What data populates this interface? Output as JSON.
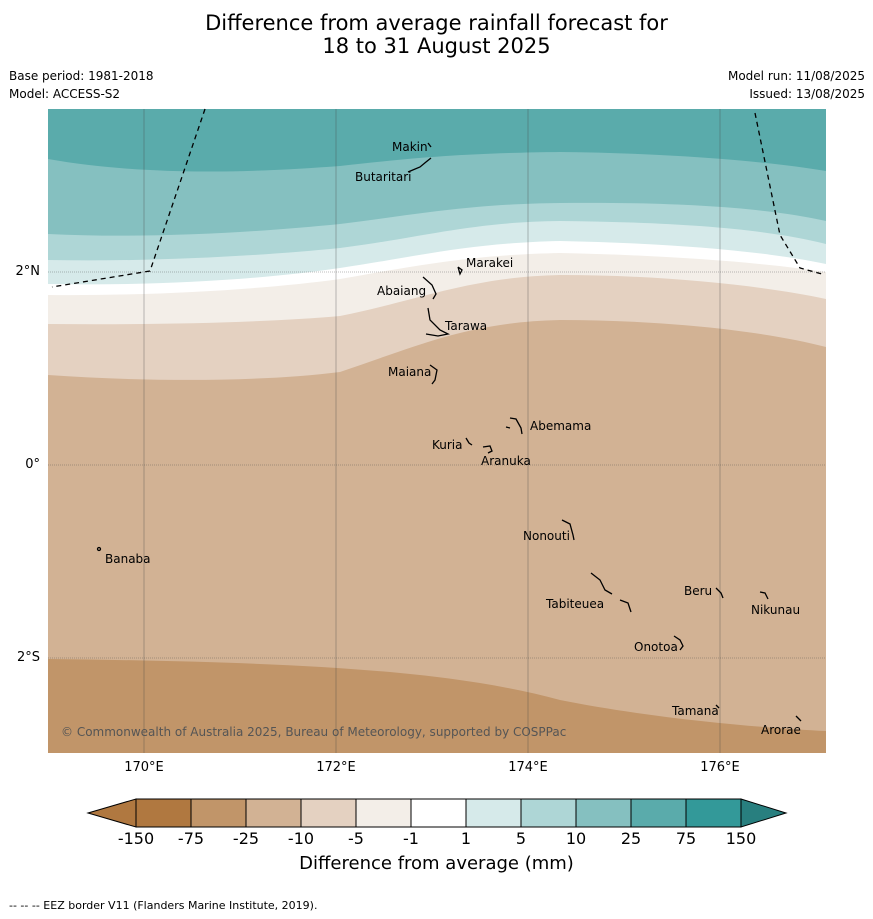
{
  "title_line1": "Difference from average rainfall forecast for",
  "title_line2": "18 to 31 August 2025",
  "base_period": "Base period: 1981-2018",
  "model": "Model: ACCESS-S2",
  "model_run": "Model run: 11/08/2025",
  "issued": "Issued: 13/08/2025",
  "copyright": "© Commonwealth of Australia 2025, Bureau of Meteorology, supported by COSPPac",
  "latitude_labels": [
    "2°N",
    "0°",
    "2°S"
  ],
  "longitude_labels": [
    "170°E",
    "172°E",
    "174°E",
    "176°E"
  ],
  "places": [
    "Makin",
    "Butaritari",
    "Marakei",
    "Abaiang",
    "Tarawa",
    "Maiana",
    "Abemama",
    "Kuria",
    "Aranuka",
    "Nonouti",
    "Banaba",
    "Beru",
    "Nikunau",
    "Tabiteuea",
    "Onotoa",
    "Tamana",
    "Arorae"
  ],
  "colorbar": {
    "ticks": [
      "-150",
      "-75",
      "-25",
      "-10",
      "-5",
      "-1",
      "1",
      "5",
      "10",
      "25",
      "75",
      "150"
    ],
    "colors": [
      "#7b4a1e",
      "#b07840",
      "#c19569",
      "#d2b294",
      "#e4d1c1",
      "#f3eee8",
      "#ffffff",
      "#d6eaea",
      "#aed6d6",
      "#85c0c0",
      "#5aabab",
      "#339999",
      "#287f7f"
    ],
    "label": "Difference from average (mm)"
  },
  "footnote": "--  --  -- EEZ border V11 (Flanders Marine Institute, 2019)."
}
